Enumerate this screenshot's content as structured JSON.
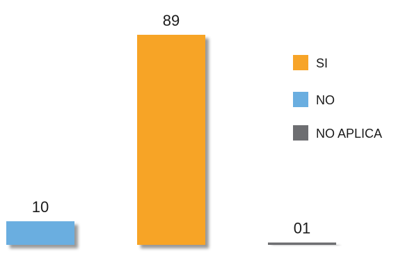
{
  "chart_data": {
    "type": "bar",
    "categories": [
      "NO",
      "SI",
      "NO APLICA"
    ],
    "values": [
      10,
      89,
      1
    ],
    "data_labels": [
      "10",
      "89",
      "01"
    ],
    "colors": [
      "#6aaee0",
      "#f7a428",
      "#6d6e71"
    ],
    "ylim": [
      0,
      100
    ],
    "grid": false,
    "legend_position": "right",
    "title": "",
    "xlabel": "",
    "ylabel": ""
  },
  "legend": {
    "items": [
      {
        "label": "SI",
        "color": "#f7a428"
      },
      {
        "label": "NO",
        "color": "#6aaee0"
      },
      {
        "label": "NO APLICA",
        "color": "#6d6e71"
      }
    ]
  }
}
